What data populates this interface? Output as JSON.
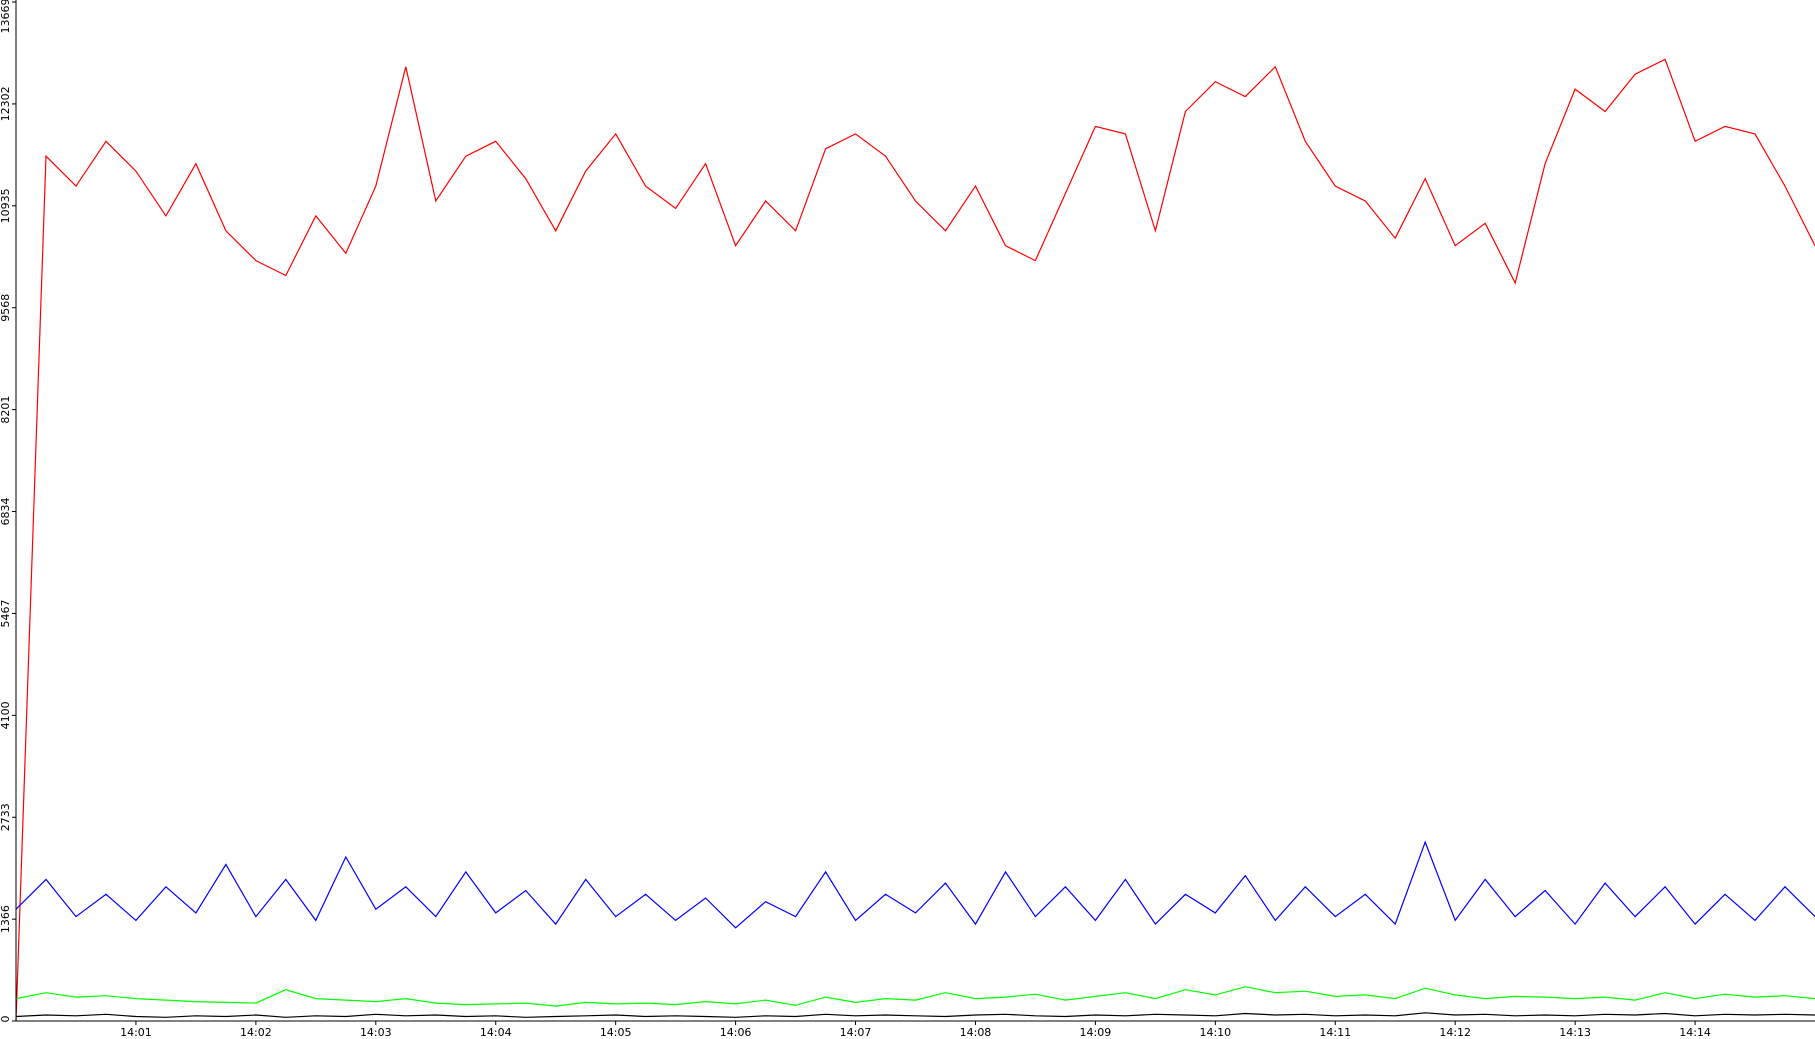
{
  "chart_data": {
    "type": "line",
    "x": [
      0,
      0.25,
      0.5,
      0.75,
      1,
      1.25,
      1.5,
      1.75,
      2,
      2.25,
      2.5,
      2.75,
      3,
      3.25,
      3.5,
      3.75,
      4,
      4.25,
      4.5,
      4.75,
      5,
      5.25,
      5.5,
      5.75,
      6,
      6.25,
      6.5,
      6.75,
      7,
      7.25,
      7.5,
      7.75,
      8,
      8.25,
      8.5,
      8.75,
      9,
      9.25,
      9.5,
      9.75,
      10,
      10.25,
      10.5,
      10.75,
      11,
      11.25,
      11.5,
      11.75,
      12,
      12.25,
      12.5,
      12.75,
      13,
      13.25,
      13.5,
      13.75,
      14,
      14.25,
      14.5,
      14.75,
      15
    ],
    "xlim": [
      0,
      15
    ],
    "xticks": [
      {
        "value": 1,
        "label": "14:01"
      },
      {
        "value": 2,
        "label": "14:02"
      },
      {
        "value": 3,
        "label": "14:03"
      },
      {
        "value": 4,
        "label": "14:04"
      },
      {
        "value": 5,
        "label": "14:05"
      },
      {
        "value": 6,
        "label": "14:06"
      },
      {
        "value": 7,
        "label": "14:07"
      },
      {
        "value": 8,
        "label": "14:08"
      },
      {
        "value": 9,
        "label": "14:09"
      },
      {
        "value": 10,
        "label": "14:10"
      },
      {
        "value": 11,
        "label": "14:11"
      },
      {
        "value": 12,
        "label": "14:12"
      },
      {
        "value": 13,
        "label": "14:13"
      },
      {
        "value": 14,
        "label": "14:14"
      }
    ],
    "ylim": [
      0,
      13669
    ],
    "yticks": [
      0,
      1366,
      2733,
      4100,
      5467,
      6834,
      8201,
      9568,
      10935,
      12302,
      13669
    ],
    "series": [
      {
        "color": "#ff0000",
        "values": [
          0,
          11600,
          11200,
          11800,
          11400,
          10800,
          11500,
          10600,
          10200,
          10000,
          10800,
          10300,
          11200,
          12800,
          11000,
          11600,
          11800,
          11300,
          10600,
          11400,
          11900,
          11200,
          10900,
          11500,
          10400,
          11000,
          10600,
          11700,
          11900,
          11600,
          11000,
          10600,
          11200,
          10400,
          10200,
          11100,
          12000,
          11900,
          10600,
          12200,
          12600,
          12400,
          12800,
          11800,
          11200,
          11000,
          10500,
          11300,
          10400,
          10700,
          9900,
          11500,
          12500,
          12200,
          12700,
          12900,
          11800,
          12000,
          11900,
          11200,
          10400
        ]
      },
      {
        "color": "#0000ff",
        "values": [
          1500,
          1900,
          1400,
          1700,
          1350,
          1800,
          1450,
          2100,
          1400,
          1900,
          1350,
          2200,
          1500,
          1800,
          1400,
          2000,
          1450,
          1750,
          1300,
          1900,
          1400,
          1700,
          1350,
          1650,
          1250,
          1600,
          1400,
          2000,
          1350,
          1700,
          1450,
          1850,
          1300,
          2000,
          1400,
          1800,
          1350,
          1900,
          1300,
          1700,
          1450,
          1950,
          1350,
          1800,
          1400,
          1700,
          1300,
          2400,
          1350,
          1900,
          1400,
          1750,
          1300,
          1850,
          1400,
          1800,
          1300,
          1700,
          1350,
          1800,
          1400
        ]
      },
      {
        "color": "#00ff00",
        "values": [
          300,
          380,
          320,
          340,
          300,
          280,
          260,
          250,
          240,
          420,
          300,
          280,
          260,
          300,
          240,
          220,
          230,
          240,
          200,
          250,
          230,
          240,
          220,
          260,
          230,
          280,
          210,
          320,
          250,
          300,
          280,
          380,
          300,
          320,
          360,
          280,
          330,
          380,
          300,
          420,
          350,
          460,
          380,
          400,
          330,
          350,
          300,
          440,
          350,
          300,
          330,
          320,
          300,
          320,
          280,
          380,
          300,
          360,
          320,
          340,
          300
        ]
      },
      {
        "color": "#000000",
        "values": [
          60,
          80,
          70,
          90,
          60,
          50,
          70,
          60,
          80,
          50,
          70,
          60,
          90,
          70,
          80,
          60,
          70,
          50,
          60,
          70,
          80,
          60,
          70,
          60,
          50,
          70,
          60,
          90,
          70,
          80,
          70,
          60,
          80,
          90,
          70,
          60,
          80,
          70,
          90,
          80,
          70,
          100,
          80,
          90,
          70,
          80,
          70,
          110,
          80,
          90,
          70,
          80,
          70,
          90,
          80,
          100,
          70,
          90,
          80,
          90,
          80
        ]
      }
    ]
  }
}
